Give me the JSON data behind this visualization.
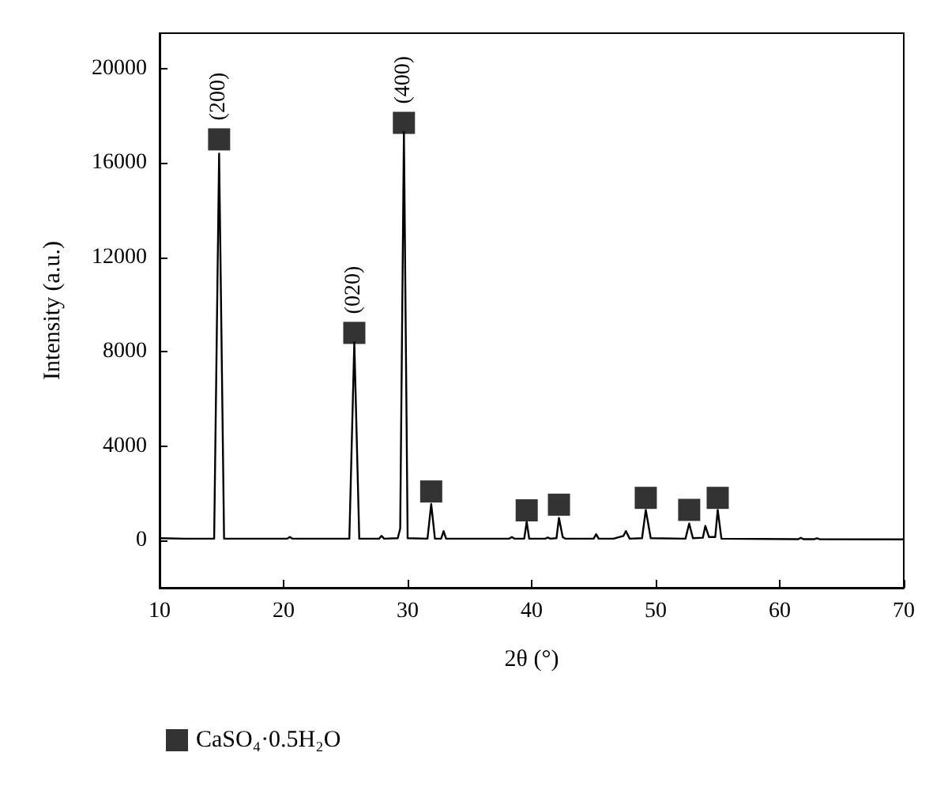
{
  "chart_data": {
    "type": "line",
    "xlabel": "2θ (°)",
    "ylabel": "Intensity (a.u.)",
    "xlim": [
      10,
      70
    ],
    "xticks": [
      10,
      20,
      30,
      40,
      50,
      60,
      70
    ],
    "ylim": [
      -2000,
      21500
    ],
    "yticks": [
      0,
      4000,
      8000,
      12000,
      16000,
      20000
    ],
    "legend": "bottom left",
    "series": [
      {
        "color": "#000000",
        "marker": "none",
        "x": [
          10,
          12,
          14.4,
          14.8,
          15.2,
          20.3,
          20.5,
          20.7,
          25.3,
          25.7,
          26.1,
          27.7,
          27.9,
          28.1,
          29.2,
          29.4,
          29.7,
          30.0,
          31.6,
          31.9,
          32.2,
          32.7,
          32.9,
          33.1,
          38.2,
          38.4,
          38.6,
          39.4,
          39.6,
          39.8,
          41.1,
          41.3,
          41.5,
          42.0,
          42.2,
          42.5,
          42.7,
          45.0,
          45.2,
          45.4,
          46.6,
          47.4,
          47.6,
          47.9,
          48.9,
          49.2,
          49.6,
          52.4,
          52.7,
          53.0,
          53.8,
          54.0,
          54.3,
          54.8,
          55.0,
          55.3,
          61.5,
          61.7,
          61.9,
          62.8,
          63.0,
          63.2,
          70
        ],
        "values": [
          100,
          80,
          80,
          16400,
          80,
          80,
          150,
          80,
          80,
          8400,
          80,
          80,
          200,
          80,
          100,
          500,
          17300,
          100,
          80,
          1550,
          80,
          80,
          400,
          80,
          80,
          150,
          80,
          80,
          800,
          80,
          80,
          130,
          80,
          100,
          960,
          150,
          80,
          80,
          270,
          80,
          80,
          200,
          400,
          80,
          100,
          1300,
          100,
          80,
          720,
          100,
          120,
          620,
          150,
          150,
          1300,
          80,
          60,
          120,
          60,
          60,
          100,
          60,
          50
        ]
      },
      {
        "type": "scatter",
        "name": "CaSO₄·0.5H₂O",
        "color": "#000000",
        "marker": "square",
        "x": [
          14.8,
          25.7,
          29.7,
          31.9,
          39.6,
          42.2,
          49.2,
          52.7,
          55.0
        ],
        "values": [
          17000,
          8800,
          17700,
          2080,
          1280,
          1520,
          1810,
          1300,
          1810
        ]
      }
    ],
    "annotations": [
      {
        "text": "(200)",
        "x": 14.8,
        "y": 17000
      },
      {
        "text": "(020)",
        "x": 25.7,
        "y": 8800
      },
      {
        "text": "(400)",
        "x": 29.7,
        "y": 17700
      }
    ]
  }
}
